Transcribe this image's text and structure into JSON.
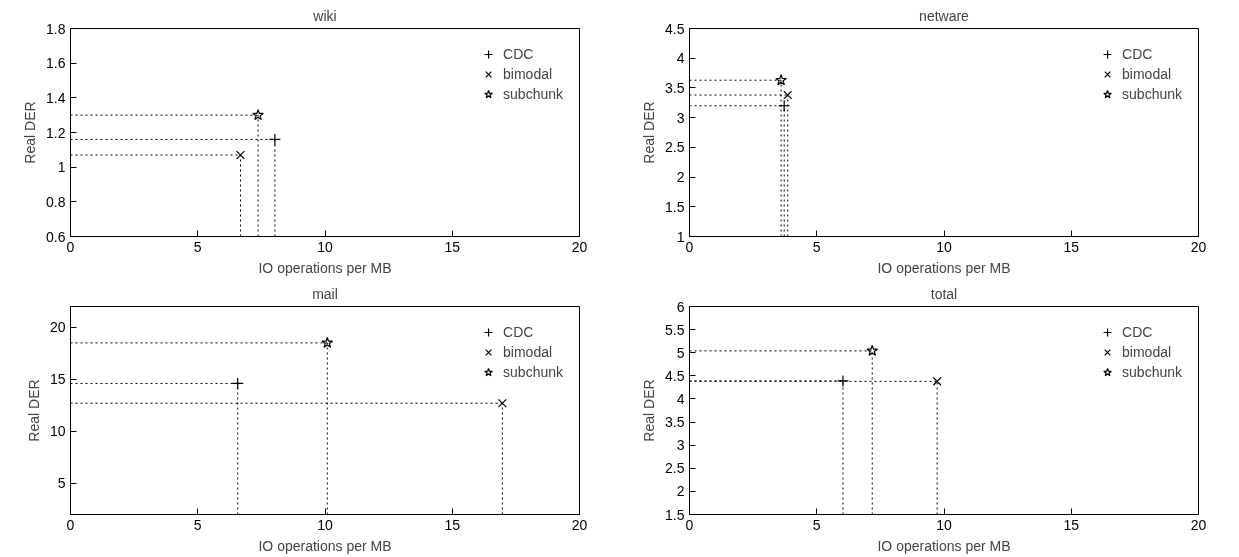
{
  "chart_data": [
    {
      "type": "scatter",
      "title": "wiki",
      "xlabel": "IO operations per MB",
      "ylabel": "Real DER",
      "xlim": [
        0,
        20
      ],
      "xticks": [
        0,
        5,
        10,
        15,
        20
      ],
      "ylim": [
        0.6,
        1.8
      ],
      "yticks": [
        0.6,
        0.8,
        1,
        1.2,
        1.4,
        1.6,
        1.8
      ],
      "grid": false,
      "legend": "top right",
      "line_style": "dotted",
      "series": [
        {
          "name": "CDC",
          "color": "#000000",
          "marker": "cross",
          "x": [
            8.03
          ],
          "values": [
            1.16
          ],
          "errors": [
            [
              0.6,
              1.16
            ]
          ],
          "xerrors": [
            [
              0,
              8.03
            ]
          ]
        },
        {
          "name": "bimodal",
          "color": "#000000",
          "marker": "x",
          "x": [
            6.68
          ],
          "values": [
            1.07
          ],
          "errors": [
            [
              0.6,
              1.07
            ]
          ],
          "xerrors": [
            [
              0,
              6.68
            ]
          ]
        },
        {
          "name": "subchunk",
          "color": "#000000",
          "marker": "star",
          "x": [
            7.37
          ],
          "values": [
            1.3
          ],
          "errors": [
            [
              0.6,
              1.3
            ]
          ],
          "xerrors": [
            [
              0,
              7.37
            ]
          ]
        }
      ]
    },
    {
      "type": "scatter",
      "title": "netware",
      "xlabel": "IO operations per MB",
      "ylabel": "Real DER",
      "xlim": [
        0,
        20
      ],
      "xticks": [
        0,
        5,
        10,
        15,
        20
      ],
      "ylim": [
        1,
        4.5
      ],
      "yticks": [
        1,
        1.5,
        2,
        2.5,
        3,
        3.5,
        4,
        4.5
      ],
      "grid": false,
      "legend": "top right",
      "line_style": "dotted",
      "series": [
        {
          "name": "CDC",
          "color": "#000000",
          "marker": "cross",
          "x": [
            3.72
          ],
          "values": [
            3.2
          ],
          "errors": [
            [
              1,
              3.2
            ]
          ],
          "xerrors": [
            [
              0,
              3.72
            ]
          ]
        },
        {
          "name": "bimodal",
          "color": "#000000",
          "marker": "x",
          "x": [
            3.86
          ],
          "values": [
            3.38
          ],
          "errors": [
            [
              1,
              3.38
            ]
          ],
          "xerrors": [
            [
              0,
              3.86
            ]
          ]
        },
        {
          "name": "subchunk",
          "color": "#000000",
          "marker": "star",
          "x": [
            3.6
          ],
          "values": [
            3.63
          ],
          "errors": [
            [
              1,
              3.63
            ]
          ],
          "xerrors": [
            [
              0,
              3.6
            ]
          ]
        }
      ]
    },
    {
      "type": "scatter",
      "title": "mail",
      "xlabel": "IO operations per MB",
      "ylabel": "Real DER",
      "xlim": [
        0,
        20
      ],
      "xticks": [
        0,
        5,
        10,
        15,
        20
      ],
      "ylim": [
        2,
        22
      ],
      "yticks": [
        5,
        10,
        15,
        20
      ],
      "grid": false,
      "legend": "top right",
      "line_style": "dotted",
      "series": [
        {
          "name": "CDC",
          "color": "#000000",
          "marker": "cross",
          "x": [
            6.57
          ],
          "values": [
            14.6
          ],
          "errors": [
            [
              2,
              14.6
            ]
          ],
          "xerrors": [
            [
              0,
              6.57
            ]
          ]
        },
        {
          "name": "bimodal",
          "color": "#000000",
          "marker": "x",
          "x": [
            16.97
          ],
          "values": [
            12.7
          ],
          "errors": [
            [
              2,
              12.7
            ]
          ],
          "xerrors": [
            [
              0,
              16.97
            ]
          ]
        },
        {
          "name": "subchunk",
          "color": "#000000",
          "marker": "star",
          "x": [
            10.09
          ],
          "values": [
            18.5
          ],
          "errors": [
            [
              2,
              18.5
            ]
          ],
          "xerrors": [
            [
              0,
              10.09
            ]
          ]
        }
      ]
    },
    {
      "type": "scatter",
      "title": "total",
      "xlabel": "IO operations per MB",
      "ylabel": "Real DER",
      "xlim": [
        0,
        20
      ],
      "xticks": [
        0,
        5,
        10,
        15,
        20
      ],
      "ylim": [
        1.5,
        6
      ],
      "yticks": [
        1.5,
        2,
        2.5,
        3,
        3.5,
        4,
        4.5,
        5,
        5.5,
        6
      ],
      "grid": false,
      "legend": "top right",
      "line_style": "dotted",
      "series": [
        {
          "name": "CDC",
          "color": "#000000",
          "marker": "cross",
          "x": [
            6.03
          ],
          "values": [
            4.39
          ],
          "errors": [
            [
              1.5,
              4.39
            ]
          ],
          "xerrors": [
            [
              0,
              6.03
            ]
          ]
        },
        {
          "name": "bimodal",
          "color": "#000000",
          "marker": "x",
          "x": [
            9.73
          ],
          "values": [
            4.38
          ],
          "errors": [
            [
              1.5,
              4.38
            ]
          ],
          "xerrors": [
            [
              0,
              9.73
            ]
          ]
        },
        {
          "name": "subchunk",
          "color": "#000000",
          "marker": "star",
          "x": [
            7.18
          ],
          "values": [
            5.04
          ],
          "errors": [
            [
              1.5,
              5.04
            ]
          ],
          "xerrors": [
            [
              0,
              7.18
            ]
          ]
        }
      ]
    }
  ]
}
